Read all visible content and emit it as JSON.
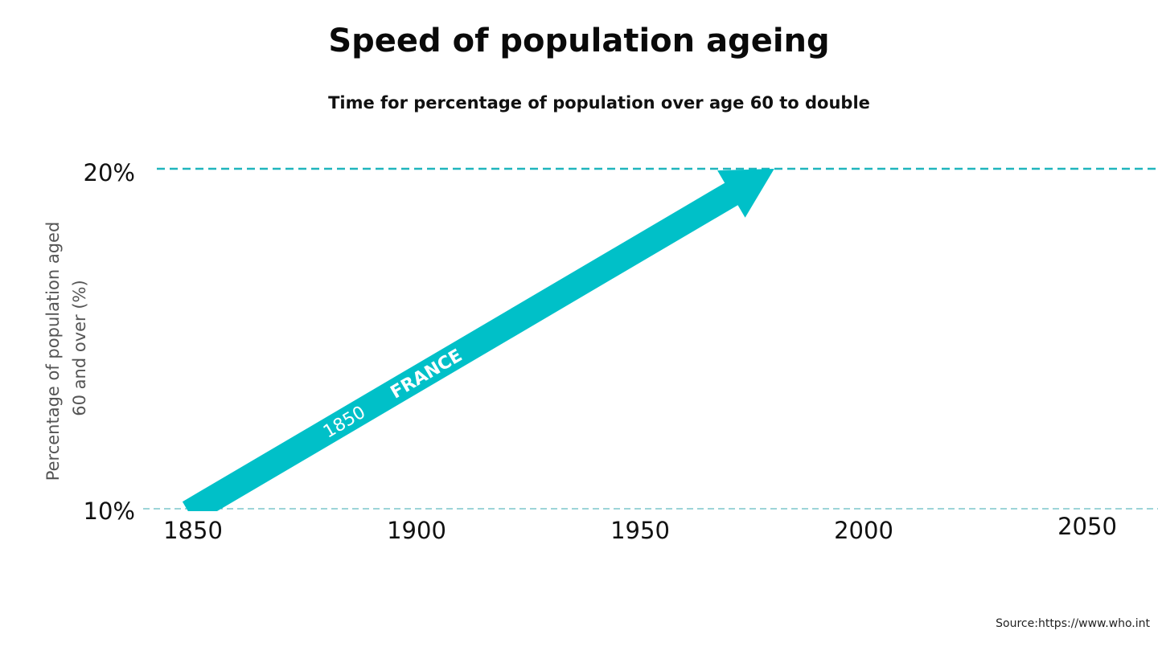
{
  "chart_data": {
    "type": "line",
    "title": "Speed of population ageing",
    "subtitle": "Time for percentage of population over age 60 to double",
    "ylabel_lines": [
      "Percentage of population aged",
      "60 and over (%)"
    ],
    "xlabel": "",
    "x_ticks": [
      1850,
      1900,
      1950,
      2000,
      2050
    ],
    "y_ticks": [
      "10%",
      "20%"
    ],
    "xlim": [
      1850,
      2050
    ],
    "ylim": [
      10,
      20
    ],
    "reference_lines": [
      {
        "y": 20,
        "style": "dashed-bold"
      },
      {
        "y": 10,
        "style": "dashed-thin"
      }
    ],
    "series": [
      {
        "name": "FRANCE",
        "start_label": "1850",
        "points": [
          {
            "x": 1850,
            "y": 10
          },
          {
            "x": 1980,
            "y": 20
          }
        ],
        "color": "#00c0c8"
      }
    ],
    "grid": false,
    "source": "Source:https://www.who.int"
  }
}
